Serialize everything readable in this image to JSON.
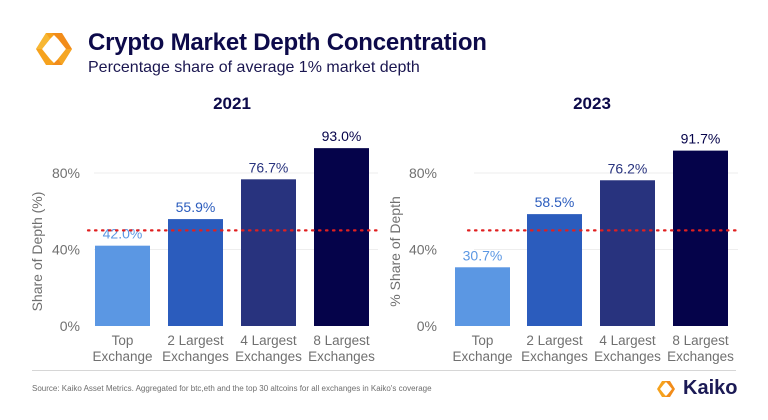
{
  "header": {
    "title": "Crypto Market Depth Concentration",
    "subtitle": "Percentage share of average 1% market depth",
    "logo_icon": "kaiko-logo-icon"
  },
  "colors": {
    "title": "#0d0a4a",
    "bar_colors": [
      "#5b97e3",
      "#2b5cbd",
      "#28337e",
      "#05034a"
    ],
    "label_colors": [
      "#5b97e3",
      "#2b5cbd",
      "#28337e",
      "#05034a"
    ],
    "threshold": "#e02020",
    "grid": "#eeeeee",
    "axis_text": "#707070"
  },
  "chart_data": [
    {
      "type": "bar",
      "title": "2021",
      "categories": [
        "Top\nExchange",
        "2 Largest\nExchanges",
        "4 Largest\nExchanges",
        "8 Largest\nExchanges"
      ],
      "values": [
        42.0,
        55.9,
        76.7,
        93.0
      ],
      "data_labels": [
        "42.0%",
        "55.9%",
        "76.7%",
        "93.0%"
      ],
      "xlabel": "",
      "ylabel": "Share of Depth (%)",
      "ylim": [
        0,
        100
      ],
      "yticks": [
        0,
        40,
        80
      ],
      "ytick_labels": [
        "0%",
        "40%",
        "80%"
      ],
      "reference_line": {
        "value": 50,
        "style": "dotted"
      },
      "grid": true,
      "legend": "none"
    },
    {
      "type": "bar",
      "title": "2023",
      "categories": [
        "Top\nExchange",
        "2 Largest\nExchanges",
        "4 Largest\nExchanges",
        "8 Largest\nExchanges"
      ],
      "values": [
        30.7,
        58.5,
        76.2,
        91.7
      ],
      "data_labels": [
        "30.7%",
        "58.5%",
        "76.2%",
        "91.7%"
      ],
      "xlabel": "",
      "ylabel": "% Share of Depth",
      "ylim": [
        0,
        100
      ],
      "yticks": [
        0,
        40,
        80
      ],
      "ytick_labels": [
        "0%",
        "40%",
        "80%"
      ],
      "reference_line": {
        "value": 50,
        "style": "dotted"
      },
      "grid": true,
      "legend": "none"
    }
  ],
  "footer": {
    "source": "Source: Kaiko Asset Metrics. Aggregated for btc,eth and the top 30 altcoins for all exchanges in Kaiko's coverage",
    "brand_name": "Kaiko"
  }
}
